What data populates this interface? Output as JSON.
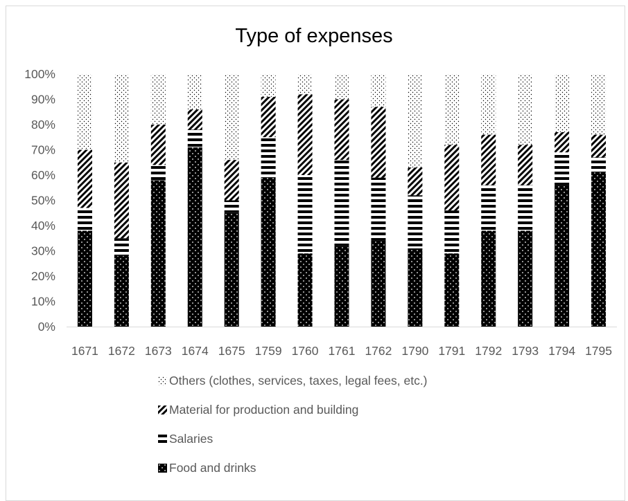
{
  "chart_data": {
    "type": "bar",
    "stacked": true,
    "percent_stacked": true,
    "title": "Type of expenses",
    "xlabel": "",
    "ylabel": "",
    "ylim": [
      0,
      100
    ],
    "y_ticks": [
      "0%",
      "10%",
      "20%",
      "30%",
      "40%",
      "50%",
      "60%",
      "70%",
      "80%",
      "90%",
      "100%"
    ],
    "grid": false,
    "legend_position": "bottom",
    "categories": [
      "1671",
      "1672",
      "1673",
      "1674",
      "1675",
      "1759",
      "1760",
      "1761",
      "1762",
      "1790",
      "1791",
      "1792",
      "1793",
      "1794",
      "1795"
    ],
    "series": [
      {
        "name": "Food and drinks",
        "pattern": "black-dots",
        "values": [
          38,
          28,
          58,
          71,
          45,
          59,
          29,
          32,
          34,
          31,
          29,
          38,
          38,
          56,
          61
        ]
      },
      {
        "name": "Salaries",
        "pattern": "horizontal-stripes",
        "values": [
          9,
          7,
          6,
          7,
          5,
          16,
          31,
          34,
          25,
          21,
          17,
          18,
          18,
          13,
          6
        ]
      },
      {
        "name": "Material for production and building",
        "pattern": "diagonal-hatch",
        "values": [
          23,
          30,
          16,
          8,
          16,
          16,
          32,
          24,
          28,
          11,
          26,
          20,
          16,
          8,
          9
        ]
      },
      {
        "name": "Others (clothes, services, taxes, legal fees, etc.)",
        "pattern": "light-dots",
        "values": [
          30,
          35,
          20,
          14,
          34,
          9,
          8,
          10,
          13,
          37,
          28,
          24,
          28,
          23,
          24
        ]
      }
    ],
    "legend_order": [
      3,
      2,
      1,
      0
    ]
  }
}
